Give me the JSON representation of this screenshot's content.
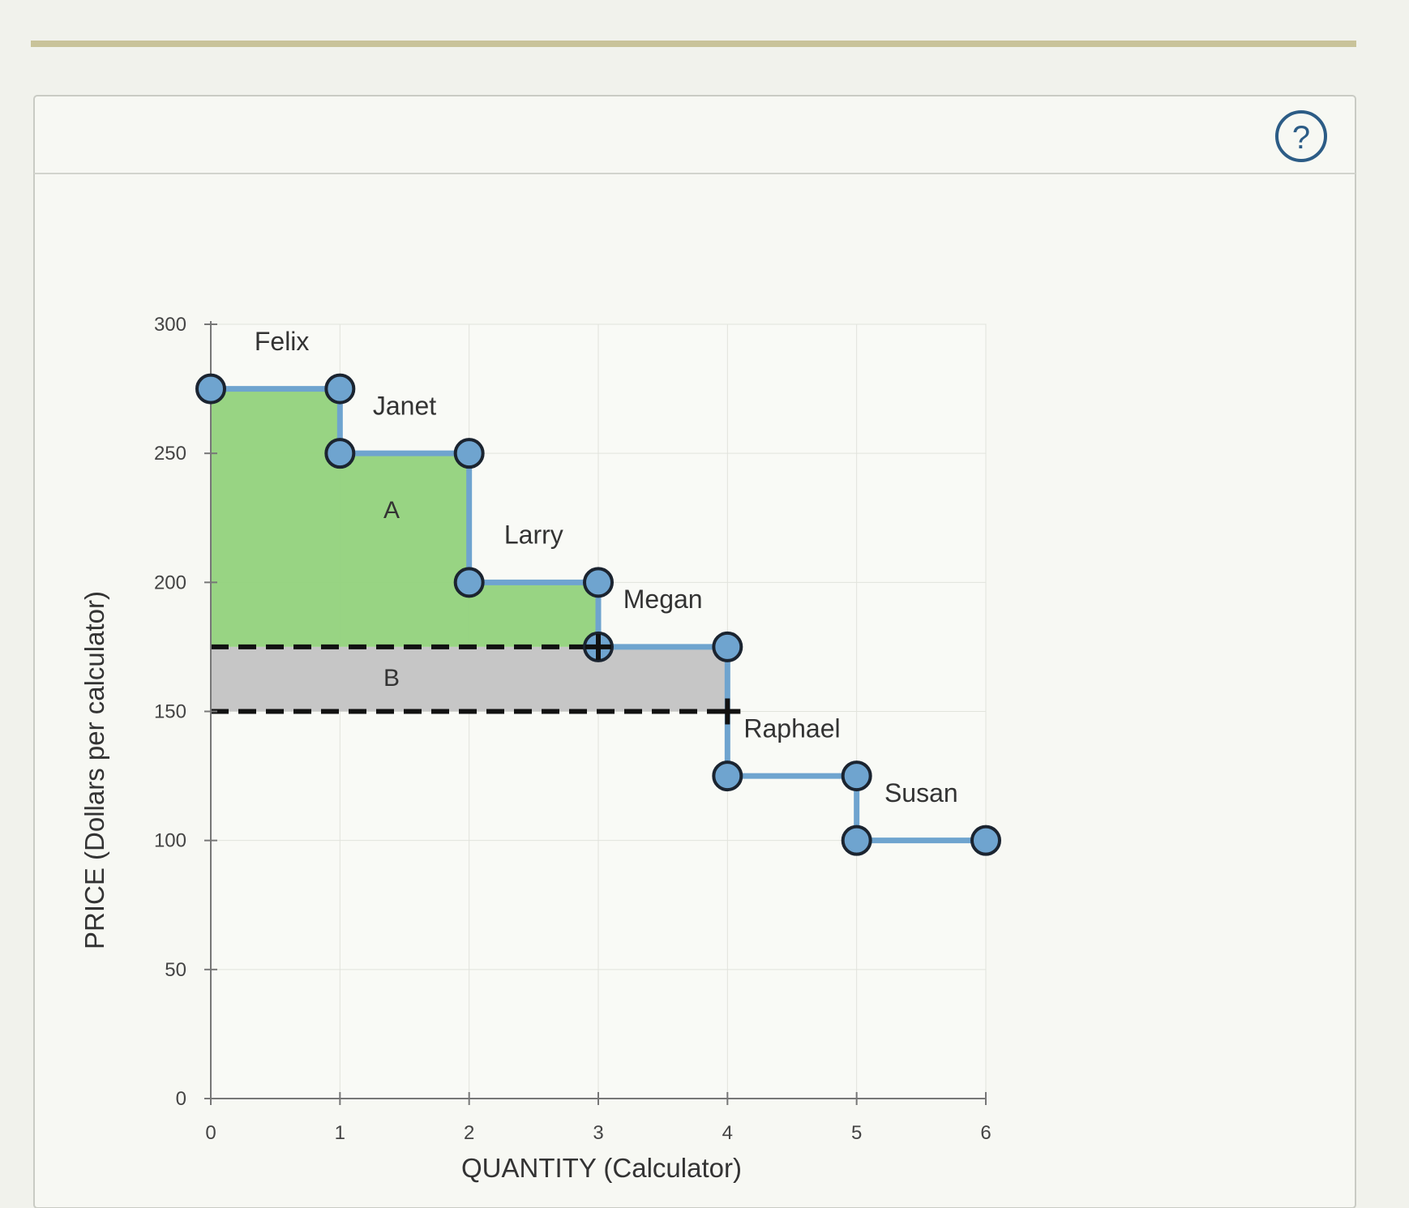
{
  "help": {
    "label": "?"
  },
  "chart_data": {
    "type": "line",
    "title": "",
    "xlabel": "QUANTITY (Calculator)",
    "ylabel": "PRICE (Dollars per calculator)",
    "xlim": [
      0,
      6
    ],
    "ylim": [
      0,
      300
    ],
    "x_ticks": [
      "0",
      "1",
      "2",
      "3",
      "4",
      "5",
      "6"
    ],
    "y_ticks": [
      "0",
      "50",
      "100",
      "150",
      "200",
      "250",
      "300"
    ],
    "demand_steps": [
      {
        "name": "Felix",
        "price": 275,
        "x_start": 0,
        "x_end": 1
      },
      {
        "name": "Janet",
        "price": 250,
        "x_start": 1,
        "x_end": 2
      },
      {
        "name": "Larry",
        "price": 200,
        "x_start": 2,
        "x_end": 3
      },
      {
        "name": "Megan",
        "price": 175,
        "x_start": 3,
        "x_end": 4
      },
      {
        "name": "Raphael",
        "price": 125,
        "x_start": 4,
        "x_end": 5
      },
      {
        "name": "Susan",
        "price": 100,
        "x_start": 5,
        "x_end": 6
      }
    ],
    "price_lines": [
      {
        "price": 175,
        "x_end": 3
      },
      {
        "price": 150,
        "x_end": 4
      }
    ],
    "regions": [
      {
        "label": "A",
        "color": "#92d27c"
      },
      {
        "label": "B",
        "color": "#c6c6c6"
      }
    ],
    "colors": {
      "curve": "#6fa4cf",
      "point": "#6fa4cf",
      "dashed": "#111111"
    }
  }
}
